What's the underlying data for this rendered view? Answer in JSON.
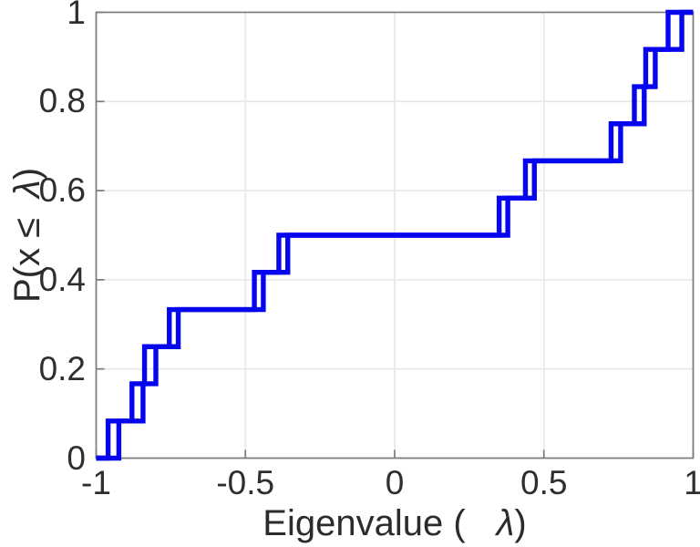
{
  "figure": {
    "title": "",
    "xlabel": {
      "prefix": "Eigenvalue (",
      "symbol": "λ",
      "suffix": ")"
    },
    "ylabel": {
      "prefix": "P(x ≤",
      "symbol": "λ",
      "suffix": ")"
    }
  },
  "chart_data": {
    "type": "line",
    "subtype": "empirical-cdf-staircase",
    "title": "",
    "xlabel": "Eigenvalue (  λ)",
    "ylabel": "P(x ≤ λ)",
    "xlim": [
      -1,
      1
    ],
    "ylim": [
      0,
      1
    ],
    "x_ticks": [
      -1,
      -0.5,
      0,
      0.5,
      1
    ],
    "x_tick_labels": [
      "-1",
      "-0.5",
      "0",
      "0.5",
      "1"
    ],
    "y_ticks": [
      0,
      0.2,
      0.4,
      0.6,
      0.8,
      1
    ],
    "y_tick_labels": [
      "0",
      "0.2",
      "0.4",
      "0.6",
      "0.8",
      "1"
    ],
    "grid": true,
    "legend": "none",
    "n_steps": 12,
    "step_levels": [
      0.0833,
      0.1667,
      0.25,
      0.3333,
      0.4167,
      0.5,
      0.5833,
      0.6667,
      0.75,
      0.8333,
      0.9167,
      1.0
    ],
    "series": [
      {
        "name": "ecdf-staircase-1",
        "color": "#0505ee",
        "step_x": [
          -0.96,
          -0.88,
          -0.838,
          -0.755,
          -0.47,
          -0.388,
          0.35,
          0.438,
          0.725,
          0.803,
          0.841,
          0.916
        ]
      },
      {
        "name": "ecdf-staircase-2",
        "color": "#0505ee",
        "step_x": [
          -0.924,
          -0.843,
          -0.8,
          -0.725,
          -0.44,
          -0.358,
          0.379,
          0.468,
          0.757,
          0.836,
          0.873,
          0.962
        ]
      }
    ],
    "colors": {
      "line": "#0505ee",
      "grid": "#e9e9e9",
      "axis_box": "#7d7d7d",
      "text": "#2e2e2e",
      "background": "#ffffff"
    },
    "line_width": 5.4
  }
}
